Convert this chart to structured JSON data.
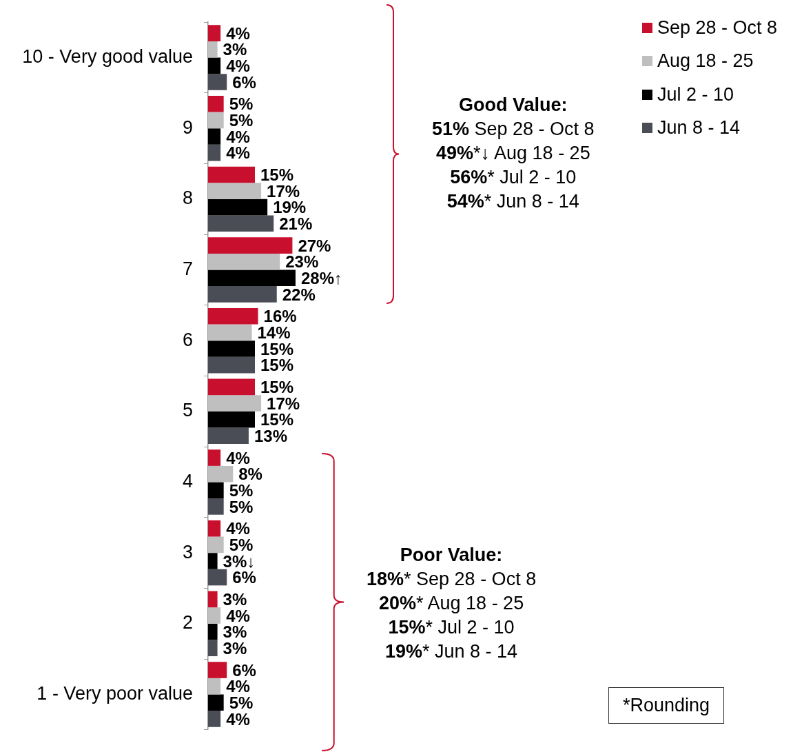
{
  "chart_data": {
    "type": "bar",
    "orientation": "horizontal",
    "categories": [
      "10 - Very good value",
      "9",
      "8",
      "7",
      "6",
      "5",
      "4",
      "3",
      "2",
      "1 - Very poor value"
    ],
    "series": [
      {
        "name": "Sep 28 - Oct 8",
        "color": "#c8102e",
        "values": [
          4,
          5,
          15,
          27,
          16,
          15,
          4,
          4,
          3,
          6
        ],
        "value_labels": [
          "4%",
          "5%",
          "15%",
          "27%",
          "16%",
          "15%",
          "4%",
          "4%",
          "3%",
          "6%"
        ]
      },
      {
        "name": "Aug 18 - 25",
        "color": "#bfbfbf",
        "values": [
          3,
          5,
          17,
          23,
          14,
          17,
          8,
          5,
          4,
          4
        ],
        "value_labels": [
          "3%",
          "5%",
          "17%",
          "23%",
          "14%",
          "17%",
          "8%",
          "5%",
          "4%",
          "4%"
        ]
      },
      {
        "name": "Jul 2 - 10",
        "color": "#000000",
        "values": [
          4,
          4,
          19,
          28,
          15,
          15,
          5,
          3,
          3,
          5
        ],
        "value_labels": [
          "4%",
          "4%",
          "19%",
          "28%↑",
          "15%",
          "15%",
          "5%",
          "3%↓",
          "3%",
          "5%"
        ]
      },
      {
        "name": "Jun 8 - 14",
        "color": "#4a4d55",
        "values": [
          6,
          4,
          21,
          22,
          15,
          13,
          5,
          6,
          3,
          4
        ],
        "value_labels": [
          "6%",
          "4%",
          "21%",
          "22%",
          "15%",
          "13%",
          "5%",
          "6%",
          "3%",
          "4%"
        ]
      }
    ],
    "tick_labels": "y",
    "grid": false,
    "legend": "top right",
    "annotations": [
      "Good Value:",
      "51% Sep 28 - Oct 8",
      "49%*↓ Aug 18 - 25",
      "56%* Jul 2 - 10",
      "54%* Jun 8 - 14",
      "Poor Value:",
      "18%* Sep 28 - Oct 8",
      "20%* Aug 18 - 25",
      "15%* Jul 2 - 10",
      "19%* Jun 8 - 14",
      "*Rounding"
    ]
  }
}
